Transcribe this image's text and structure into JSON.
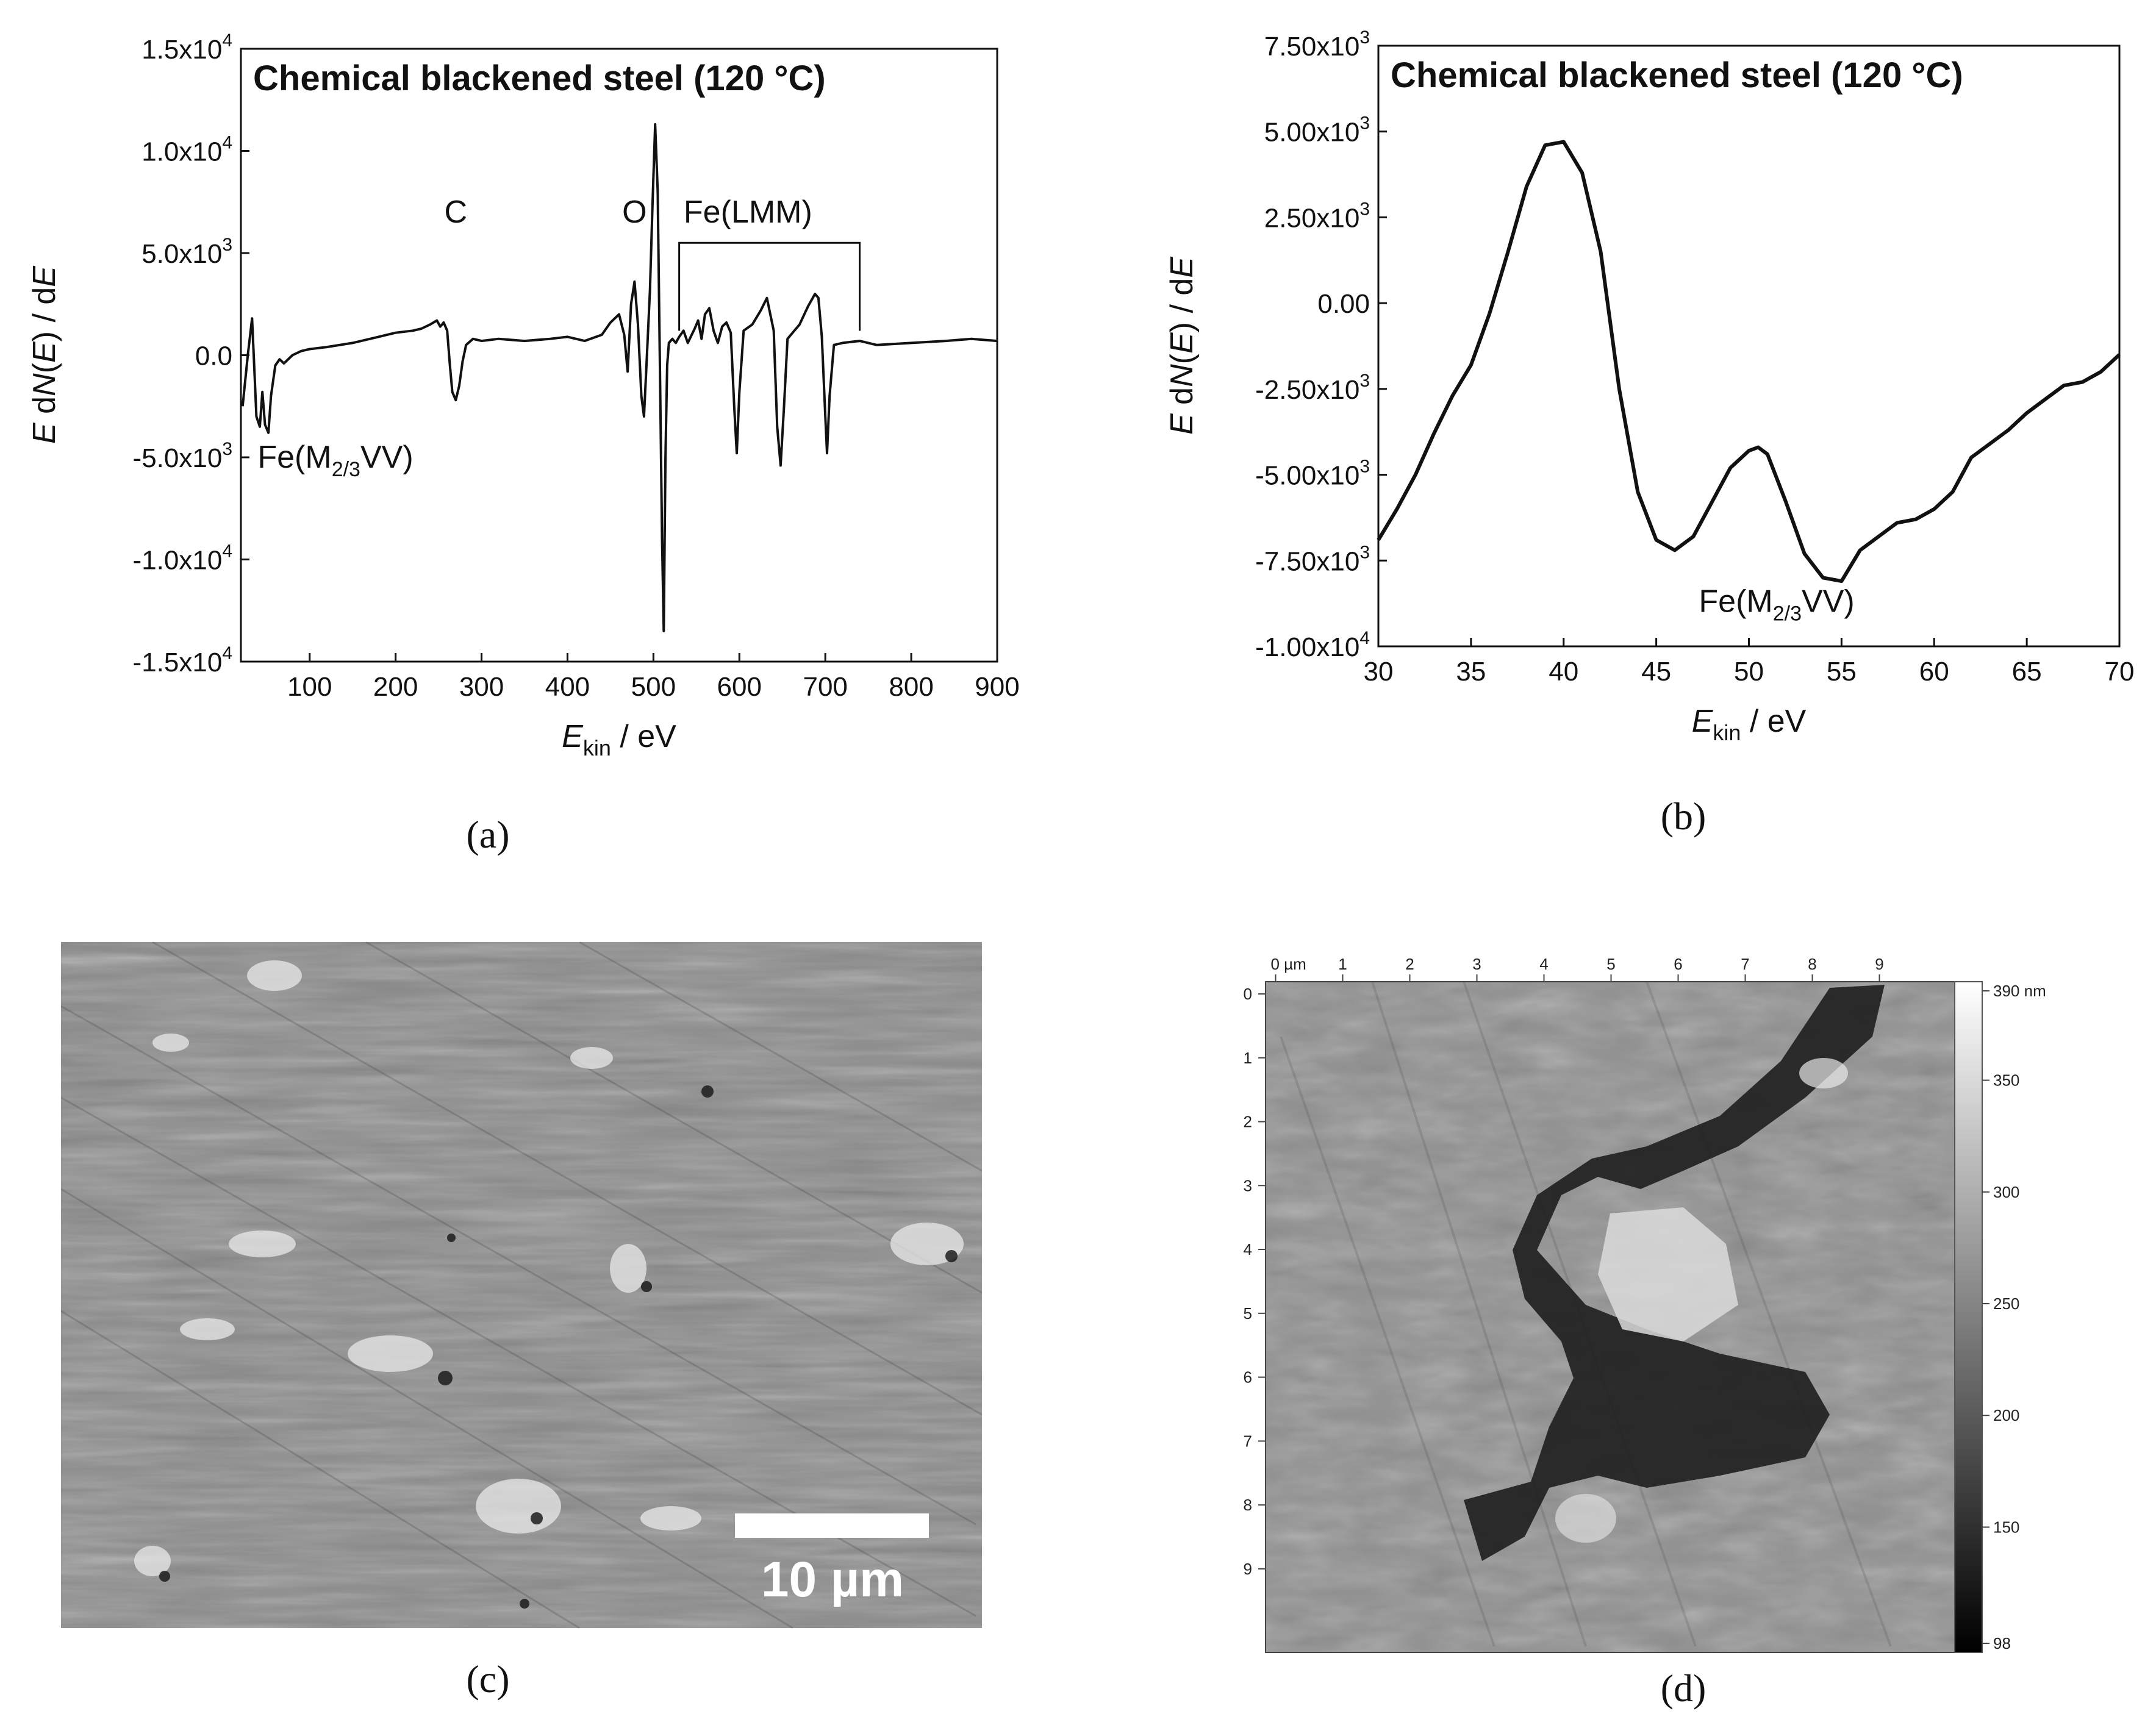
{
  "captions": {
    "a": "(a)",
    "b": "(b)",
    "c": "(c)",
    "d": "(d)"
  },
  "panel_c": {
    "scale_bar": "10 µm"
  },
  "panel_d": {
    "x_ticks": [
      "0 µm",
      "1",
      "2",
      "3",
      "4",
      "5",
      "6",
      "7",
      "8",
      "9"
    ],
    "y_ticks": [
      "0",
      "1",
      "2",
      "3",
      "4",
      "5",
      "6",
      "7",
      "8",
      "9"
    ],
    "colorbar_ticks": [
      "390 nm",
      "350",
      "300",
      "250",
      "200",
      "150",
      "98"
    ],
    "colorbar_values": [
      390,
      350,
      300,
      250,
      200,
      150,
      98
    ]
  },
  "chart_data": [
    {
      "id": "a",
      "type": "line",
      "title": "Chemical blackened steel (120 °C)",
      "xlabel": "E_kin / eV",
      "ylabel": "E dN(E) / dE",
      "xlim": [
        20,
        900
      ],
      "ylim": [
        -15000,
        15000
      ],
      "x_ticks": [
        100,
        200,
        300,
        400,
        500,
        600,
        700,
        800,
        900
      ],
      "x_tick_labels": [
        "100",
        "200",
        "300",
        "400",
        "500",
        "600",
        "700",
        "800",
        "900"
      ],
      "y_ticks": [
        15000,
        10000,
        5000,
        0,
        -5000,
        -10000,
        -15000
      ],
      "y_tick_labels": [
        "1.5x10^4",
        "1.0x10^4",
        "5.0x10^3",
        "0.0",
        "-5.0x10^3",
        "-1.0x10^4",
        "-1.5x10^4"
      ],
      "annotations": [
        {
          "text": "C",
          "x": 270,
          "y": 6500
        },
        {
          "text": "O",
          "x": 478,
          "y": 6500
        },
        {
          "text": "Fe(LMM)",
          "x": 610,
          "y": 6500
        },
        {
          "text": "Fe(M2/3VV)",
          "x": 130,
          "y": -5500
        }
      ],
      "bracket": {
        "x_start": 530,
        "x_end": 740,
        "y": 5500
      },
      "series": [
        {
          "x": [
            22,
            28,
            33,
            36,
            38,
            42,
            45,
            48,
            52,
            55,
            60,
            65,
            70,
            80,
            90,
            100,
            120,
            150,
            180,
            200,
            220,
            230,
            240,
            248,
            252,
            256,
            260,
            263,
            266,
            270,
            274,
            278,
            282,
            290,
            300,
            320,
            350,
            380,
            400,
            420,
            440,
            450,
            460,
            466,
            470,
            474,
            478,
            482,
            486,
            489,
            492,
            496,
            499,
            502,
            505,
            508,
            510,
            512,
            514,
            516,
            518,
            522,
            526,
            530,
            535,
            540,
            548,
            552,
            556,
            560,
            565,
            570,
            575,
            580,
            585,
            590,
            594,
            597,
            600,
            605,
            615,
            625,
            632,
            640,
            644,
            648,
            652,
            656,
            660,
            670,
            680,
            688,
            692,
            696,
            700,
            702,
            705,
            710,
            720,
            740,
            760,
            800,
            840,
            870,
            900
          ],
          "y": [
            -2500,
            0,
            1800,
            -1000,
            -3000,
            -3500,
            -1800,
            -3400,
            -3800,
            -2000,
            -500,
            -200,
            -400,
            0,
            200,
            300,
            400,
            600,
            900,
            1100,
            1200,
            1300,
            1500,
            1700,
            1400,
            1600,
            1200,
            -400,
            -1800,
            -2200,
            -1500,
            -300,
            500,
            800,
            700,
            800,
            700,
            800,
            900,
            700,
            1000,
            1600,
            2000,
            1000,
            -800,
            2500,
            3600,
            1500,
            -2000,
            -3000,
            -400,
            3200,
            7500,
            11300,
            8000,
            -2000,
            -9000,
            -13500,
            -5000,
            -500,
            600,
            800,
            600,
            900,
            1200,
            600,
            1300,
            1700,
            800,
            2000,
            2300,
            1200,
            600,
            1400,
            1600,
            1100,
            -2500,
            -4800,
            -1800,
            1200,
            1500,
            2200,
            2800,
            1200,
            -3500,
            -5400,
            -2500,
            800,
            1000,
            1500,
            2400,
            3000,
            2800,
            900,
            -3000,
            -4800,
            -2000,
            500,
            600,
            700,
            500,
            600,
            700,
            800,
            700
          ]
        }
      ]
    },
    {
      "id": "b",
      "type": "line",
      "title": "Chemical blackened steel (120 °C)",
      "xlabel": "E_kin / eV",
      "ylabel": "E dN(E) / dE",
      "xlim": [
        30,
        70
      ],
      "ylim": [
        -10000,
        7500
      ],
      "x_ticks": [
        30,
        35,
        40,
        45,
        50,
        55,
        60,
        65,
        70
      ],
      "x_tick_labels": [
        "30",
        "35",
        "40",
        "45",
        "50",
        "55",
        "60",
        "65",
        "70"
      ],
      "y_ticks": [
        7500,
        5000,
        2500,
        0,
        -2500,
        -5000,
        -7500,
        -10000
      ],
      "y_tick_labels": [
        "7.50x10^3",
        "5.00x10^3",
        "2.50x10^3",
        "0.00",
        "-2.50x10^3",
        "-5.00x10^3",
        "-7.50x10^3",
        "-1.00x10^4"
      ],
      "annotations": [
        {
          "text": "Fe(M2/3VV)",
          "x": 51.5,
          "y": -9000
        }
      ],
      "series": [
        {
          "x": [
            30,
            31,
            32,
            33,
            34,
            35,
            36,
            37,
            38,
            39,
            40,
            41,
            42,
            43,
            44,
            45,
            46,
            47,
            48,
            49,
            50,
            50.5,
            51,
            52,
            53,
            54,
            55,
            56,
            57,
            58,
            59,
            60,
            61,
            62,
            63,
            64,
            65,
            66,
            67,
            68,
            69,
            70
          ],
          "y": [
            -6900,
            -6000,
            -5000,
            -3800,
            -2700,
            -1800,
            -300,
            1500,
            3400,
            4600,
            4700,
            3800,
            1500,
            -2500,
            -5500,
            -6900,
            -7200,
            -6800,
            -5800,
            -4800,
            -4300,
            -4200,
            -4400,
            -5800,
            -7300,
            -8000,
            -8100,
            -7200,
            -6800,
            -6400,
            -6300,
            -6000,
            -5500,
            -4500,
            -4100,
            -3700,
            -3200,
            -2800,
            -2400,
            -2300,
            -2000,
            -1500
          ]
        }
      ]
    }
  ]
}
